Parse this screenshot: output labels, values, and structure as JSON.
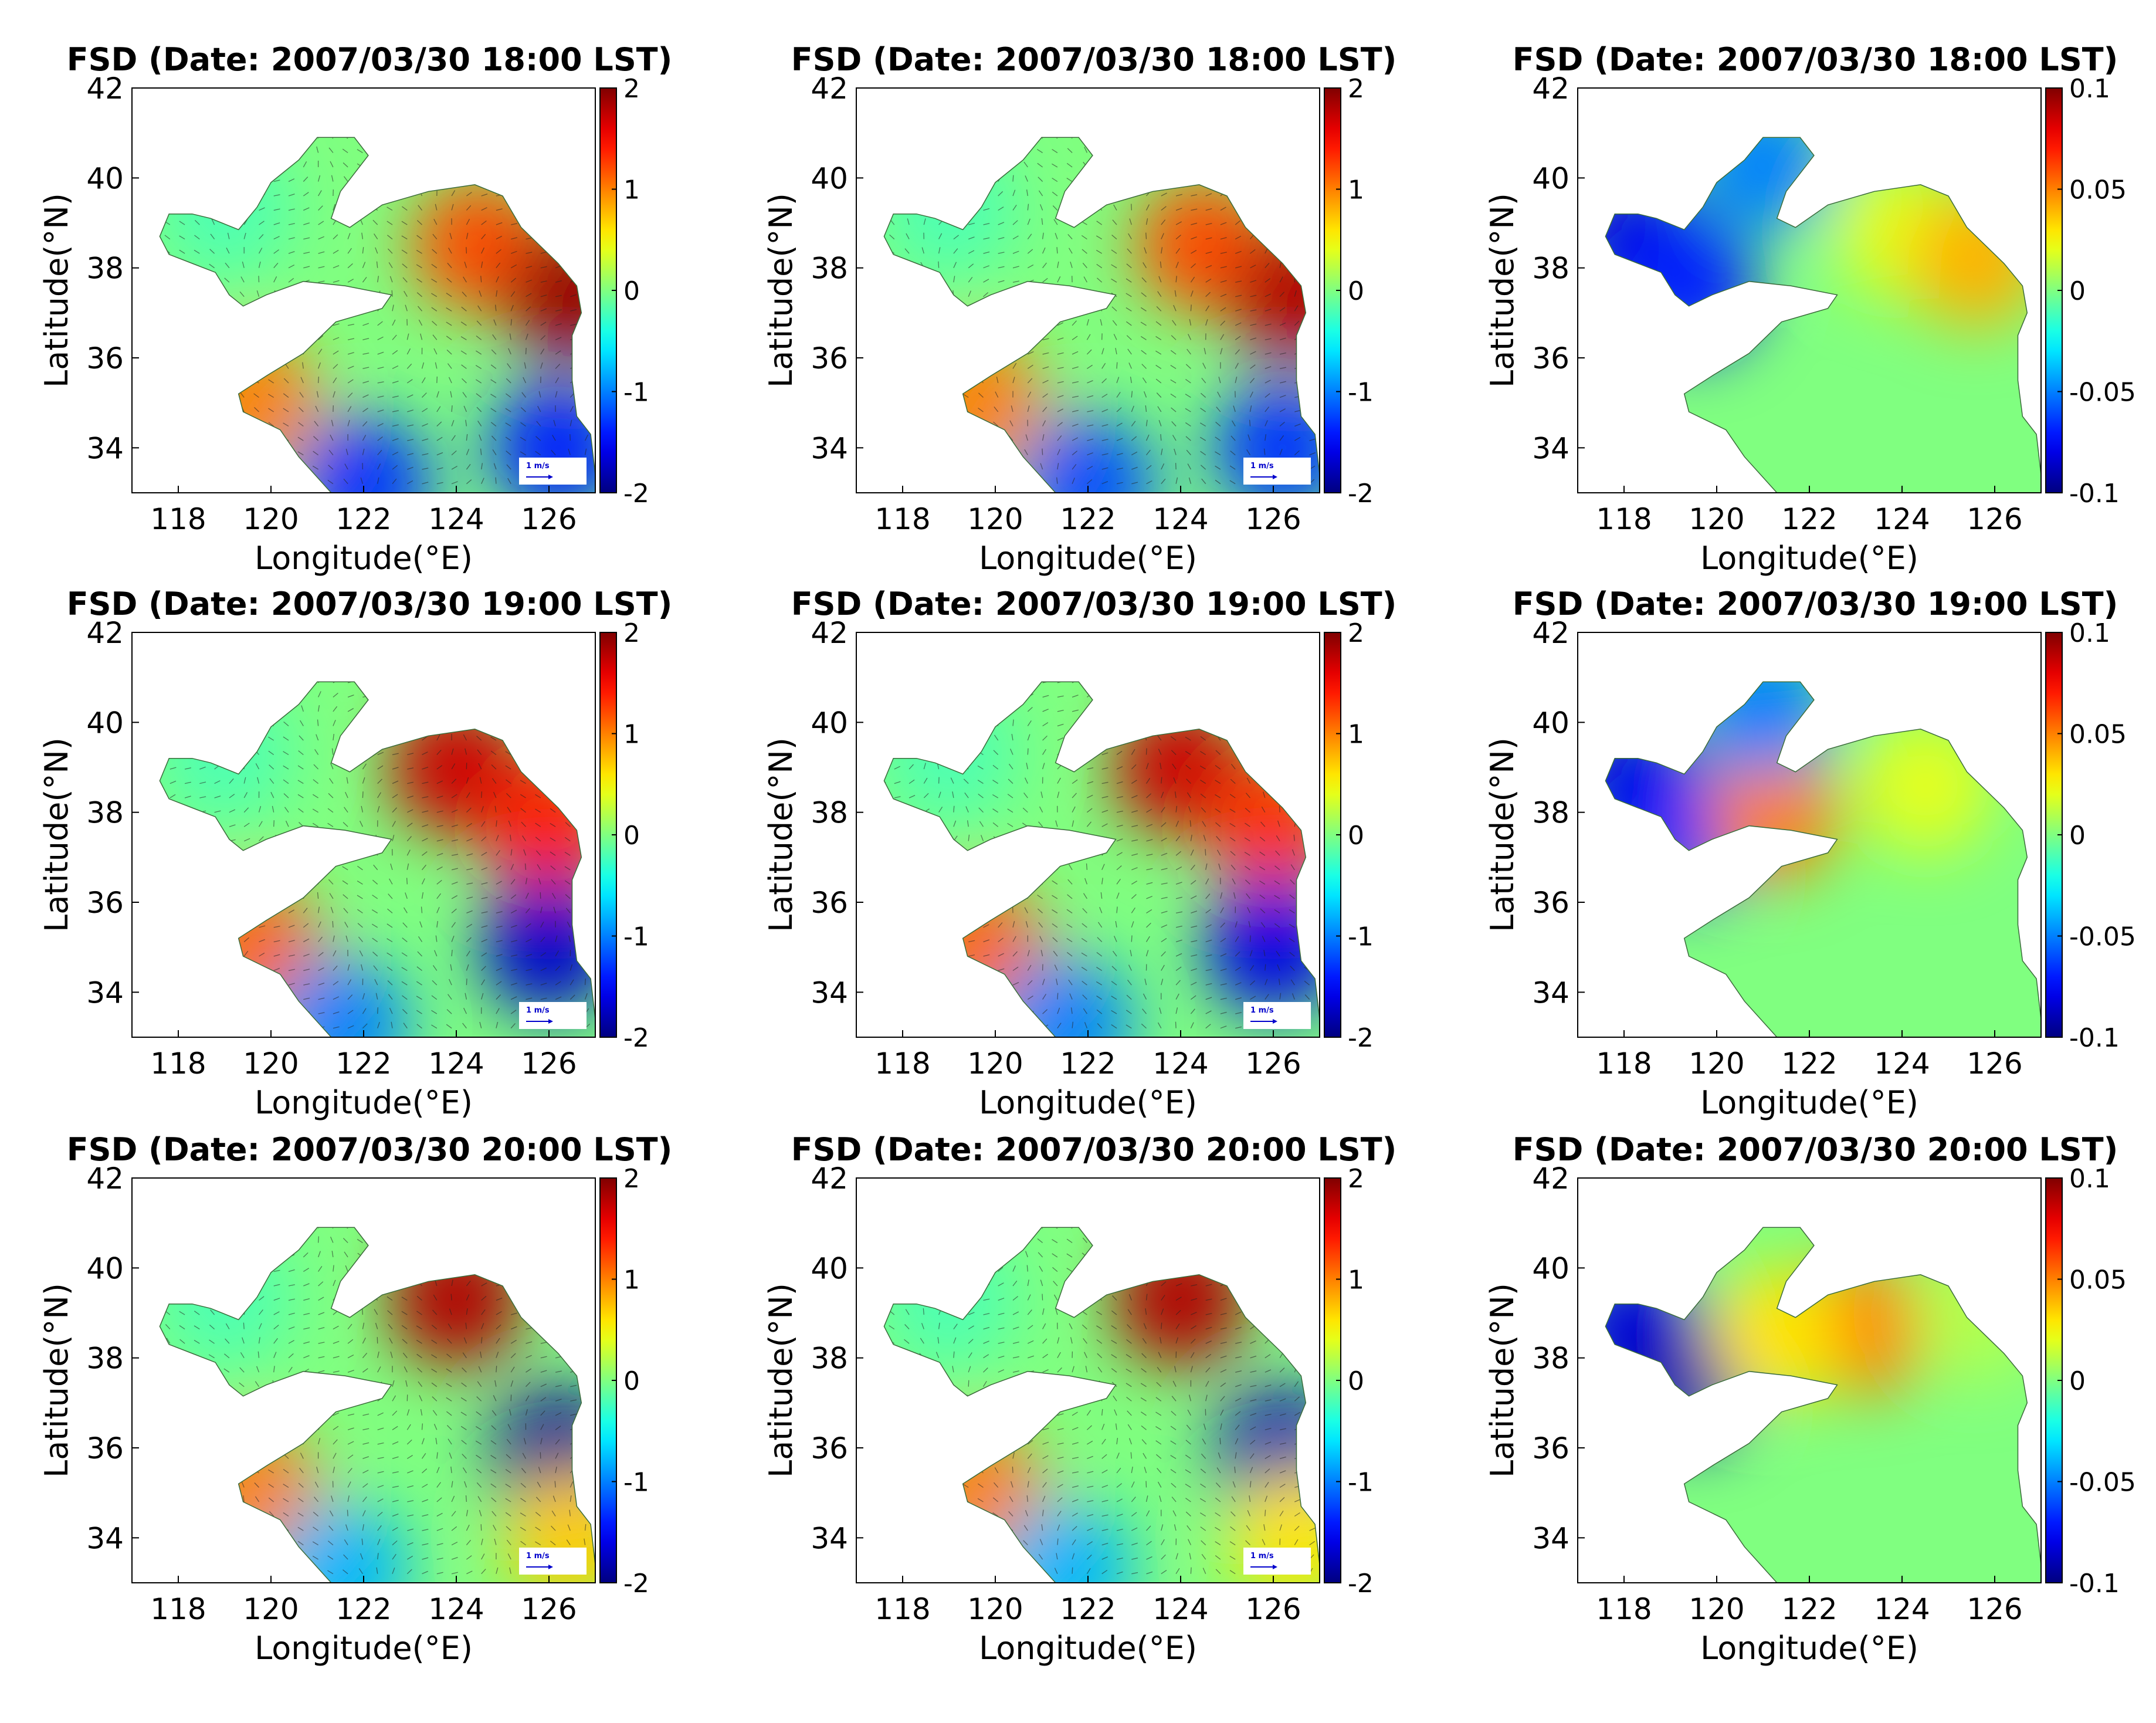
{
  "chart_data": [
    {
      "type": "heatmap",
      "title": "FSD (Date: 2007/03/30 18:00 LST)",
      "xlabel": "Longitude(°E)",
      "ylabel": "Latitude(°N)",
      "xlim": [
        117,
        127
      ],
      "ylim": [
        33,
        42
      ],
      "xticks": [
        "118",
        "120",
        "122",
        "124",
        "126"
      ],
      "yticks": [
        "34",
        "36",
        "38",
        "40",
        "42"
      ],
      "colorbar": {
        "min": -2,
        "max": 2,
        "ticks": [
          "2",
          "1",
          "0",
          "-1",
          "-2"
        ]
      },
      "scale_arrow": "1 m/s",
      "vectors": true,
      "blobs": [
        {
          "lon": 124.5,
          "lat": 38.5,
          "value": 1.2
        },
        {
          "lon": 126.5,
          "lat": 37.4,
          "value": 1.9
        },
        {
          "lon": 119.6,
          "lat": 35.0,
          "value": 1.0
        },
        {
          "lon": 126.2,
          "lat": 34.0,
          "value": -1.4
        },
        {
          "lon": 122.0,
          "lat": 33.2,
          "value": -1.3
        },
        {
          "lon": 119.0,
          "lat": 39.3,
          "value": -0.2
        }
      ]
    },
    {
      "type": "heatmap",
      "title": "FSD (Date: 2007/03/30 18:00 LST)",
      "xlabel": "Longitude(°E)",
      "ylabel": "Latitude(°N)",
      "xlim": [
        117,
        127
      ],
      "ylim": [
        33,
        42
      ],
      "xticks": [
        "118",
        "120",
        "122",
        "124",
        "126"
      ],
      "yticks": [
        "34",
        "36",
        "38",
        "40",
        "42"
      ],
      "colorbar": {
        "min": -2,
        "max": 2,
        "ticks": [
          "2",
          "1",
          "0",
          "-1",
          "-2"
        ]
      },
      "scale_arrow": "1 m/s",
      "vectors": true,
      "blobs": [
        {
          "lon": 124.5,
          "lat": 38.5,
          "value": 1.2
        },
        {
          "lon": 126.5,
          "lat": 37.4,
          "value": 1.8
        },
        {
          "lon": 119.6,
          "lat": 35.0,
          "value": 1.0
        },
        {
          "lon": 126.2,
          "lat": 34.0,
          "value": -1.3
        },
        {
          "lon": 122.0,
          "lat": 33.2,
          "value": -1.2
        },
        {
          "lon": 119.0,
          "lat": 39.3,
          "value": -0.2
        }
      ]
    },
    {
      "type": "heatmap",
      "title": "FSD (Date: 2007/03/30 18:00 LST)",
      "xlabel": "Longitude(°E)",
      "ylabel": "Latitude(°N)",
      "xlim": [
        117,
        127
      ],
      "ylim": [
        33,
        42
      ],
      "xticks": [
        "118",
        "120",
        "122",
        "124",
        "126"
      ],
      "yticks": [
        "34",
        "36",
        "38",
        "40",
        "42"
      ],
      "colorbar": {
        "min": -0.1,
        "max": 0.1,
        "ticks": [
          "0.1",
          "0.05",
          "0",
          "-0.05",
          "-0.1"
        ]
      },
      "vectors": false,
      "blobs": [
        {
          "lon": 118.2,
          "lat": 38.6,
          "value": -0.08
        },
        {
          "lon": 119.4,
          "lat": 37.6,
          "value": -0.07
        },
        {
          "lon": 124.0,
          "lat": 38.8,
          "value": 0.02
        },
        {
          "lon": 125.6,
          "lat": 38.2,
          "value": 0.04
        },
        {
          "lon": 121.0,
          "lat": 40.3,
          "value": -0.05
        }
      ]
    },
    {
      "type": "heatmap",
      "title": "FSD (Date: 2007/03/30 19:00 LST)",
      "xlabel": "Longitude(°E)",
      "ylabel": "Latitude(°N)",
      "xlim": [
        117,
        127
      ],
      "ylim": [
        33,
        42
      ],
      "xticks": [
        "118",
        "120",
        "122",
        "124",
        "126"
      ],
      "yticks": [
        "34",
        "36",
        "38",
        "40",
        "42"
      ],
      "colorbar": {
        "min": -2,
        "max": 2,
        "ticks": [
          "2",
          "1",
          "0",
          "-1",
          "-2"
        ]
      },
      "scale_arrow": "1 m/s",
      "vectors": true,
      "blobs": [
        {
          "lon": 124.0,
          "lat": 39.0,
          "value": 1.7
        },
        {
          "lon": 126.0,
          "lat": 37.7,
          "value": 1.4
        },
        {
          "lon": 119.6,
          "lat": 35.0,
          "value": 1.1
        },
        {
          "lon": 126.0,
          "lat": 35.0,
          "value": -1.7
        },
        {
          "lon": 121.5,
          "lat": 33.3,
          "value": -1.0
        },
        {
          "lon": 119.0,
          "lat": 39.3,
          "value": -0.2
        }
      ]
    },
    {
      "type": "heatmap",
      "title": "FSD (Date: 2007/03/30 19:00 LST)",
      "xlabel": "Longitude(°E)",
      "ylabel": "Latitude(°N)",
      "xlim": [
        117,
        127
      ],
      "ylim": [
        33,
        42
      ],
      "xticks": [
        "118",
        "120",
        "122",
        "124",
        "126"
      ],
      "yticks": [
        "34",
        "36",
        "38",
        "40",
        "42"
      ],
      "colorbar": {
        "min": -2,
        "max": 2,
        "ticks": [
          "2",
          "1",
          "0",
          "-1",
          "-2"
        ]
      },
      "scale_arrow": "1 m/s",
      "vectors": true,
      "blobs": [
        {
          "lon": 124.0,
          "lat": 39.0,
          "value": 1.7
        },
        {
          "lon": 126.0,
          "lat": 37.7,
          "value": 1.3
        },
        {
          "lon": 119.6,
          "lat": 35.0,
          "value": 1.1
        },
        {
          "lon": 126.0,
          "lat": 35.0,
          "value": -1.6
        },
        {
          "lon": 121.5,
          "lat": 33.3,
          "value": -1.0
        },
        {
          "lon": 119.0,
          "lat": 39.3,
          "value": -0.2
        }
      ]
    },
    {
      "type": "heatmap",
      "title": "FSD (Date: 2007/03/30 19:00 LST)",
      "xlabel": "Longitude(°E)",
      "ylabel": "Latitude(°N)",
      "xlim": [
        117,
        127
      ],
      "ylim": [
        33,
        42
      ],
      "xticks": [
        "118",
        "120",
        "122",
        "124",
        "126"
      ],
      "yticks": [
        "34",
        "36",
        "38",
        "40",
        "42"
      ],
      "colorbar": {
        "min": -0.1,
        "max": 0.1,
        "ticks": [
          "0.1",
          "0.05",
          "0",
          "-0.05",
          "-0.1"
        ]
      },
      "vectors": false,
      "blobs": [
        {
          "lon": 118.2,
          "lat": 38.6,
          "value": -0.08
        },
        {
          "lon": 119.4,
          "lat": 37.6,
          "value": -0.07
        },
        {
          "lon": 121.2,
          "lat": 38.0,
          "value": 0.05
        },
        {
          "lon": 124.5,
          "lat": 38.6,
          "value": 0.02
        },
        {
          "lon": 121.0,
          "lat": 40.3,
          "value": -0.05
        }
      ]
    },
    {
      "type": "heatmap",
      "title": "FSD (Date: 2007/03/30 20:00 LST)",
      "xlabel": "Longitude(°E)",
      "ylabel": "Latitude(°N)",
      "xlim": [
        117,
        127
      ],
      "ylim": [
        33,
        42
      ],
      "xticks": [
        "118",
        "120",
        "122",
        "124",
        "126"
      ],
      "yticks": [
        "34",
        "36",
        "38",
        "40",
        "42"
      ],
      "colorbar": {
        "min": -2,
        "max": 2,
        "ticks": [
          "2",
          "1",
          "0",
          "-1",
          "-2"
        ]
      },
      "scale_arrow": "1 m/s",
      "vectors": true,
      "blobs": [
        {
          "lon": 124.0,
          "lat": 39.3,
          "value": 1.8
        },
        {
          "lon": 119.6,
          "lat": 35.0,
          "value": 1.0
        },
        {
          "lon": 126.2,
          "lat": 35.8,
          "value": -1.9
        },
        {
          "lon": 126.5,
          "lat": 34.0,
          "value": 0.7
        },
        {
          "lon": 121.5,
          "lat": 33.3,
          "value": -0.8
        },
        {
          "lon": 119.0,
          "lat": 39.3,
          "value": -0.2
        }
      ]
    },
    {
      "type": "heatmap",
      "title": "FSD (Date: 2007/03/30 20:00 LST)",
      "xlabel": "Longitude(°E)",
      "ylabel": "Latitude(°N)",
      "xlim": [
        117,
        127
      ],
      "ylim": [
        33,
        42
      ],
      "xticks": [
        "118",
        "120",
        "122",
        "124",
        "126"
      ],
      "yticks": [
        "34",
        "36",
        "38",
        "40",
        "42"
      ],
      "colorbar": {
        "min": -2,
        "max": 2,
        "ticks": [
          "2",
          "1",
          "0",
          "-1",
          "-2"
        ]
      },
      "scale_arrow": "1 m/s",
      "vectors": true,
      "blobs": [
        {
          "lon": 124.0,
          "lat": 39.3,
          "value": 1.8
        },
        {
          "lon": 119.6,
          "lat": 35.0,
          "value": 1.0
        },
        {
          "lon": 126.2,
          "lat": 35.8,
          "value": -1.8
        },
        {
          "lon": 126.5,
          "lat": 34.0,
          "value": 0.6
        },
        {
          "lon": 121.5,
          "lat": 33.3,
          "value": -0.8
        },
        {
          "lon": 119.0,
          "lat": 39.3,
          "value": -0.2
        }
      ]
    },
    {
      "type": "heatmap",
      "title": "FSD (Date: 2007/03/30 20:00 LST)",
      "xlabel": "Longitude(°E)",
      "ylabel": "Latitude(°N)",
      "xlim": [
        117,
        127
      ],
      "ylim": [
        33,
        42
      ],
      "xticks": [
        "118",
        "120",
        "122",
        "124",
        "126"
      ],
      "yticks": [
        "34",
        "36",
        "38",
        "40",
        "42"
      ],
      "colorbar": {
        "min": -0.1,
        "max": 0.1,
        "ticks": [
          "0.1",
          "0.05",
          "0",
          "-0.05",
          "-0.1"
        ]
      },
      "vectors": false,
      "blobs": [
        {
          "lon": 118.2,
          "lat": 38.6,
          "value": -0.08
        },
        {
          "lon": 119.4,
          "lat": 37.6,
          "value": -0.09
        },
        {
          "lon": 123.2,
          "lat": 38.7,
          "value": 0.05
        },
        {
          "lon": 121.3,
          "lat": 38.5,
          "value": 0.03
        },
        {
          "lon": 125.6,
          "lat": 39.0,
          "value": 0.01
        }
      ]
    }
  ]
}
